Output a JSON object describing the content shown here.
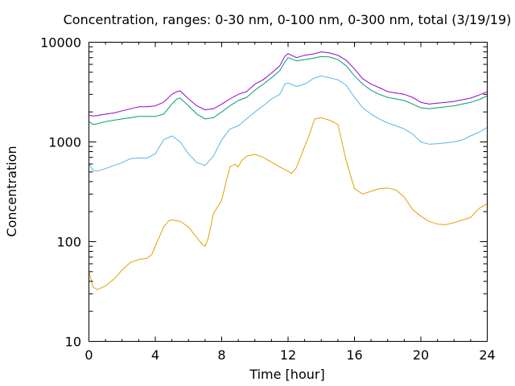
{
  "chart_data": {
    "type": "line",
    "title": "Concentration, ranges: 0-30 nm, 0-100 nm, 0-300 nm, total (3/19/19)",
    "xlabel": "Time [hour]",
    "ylabel": "Concentration",
    "xlim": [
      0,
      24
    ],
    "ylim": [
      10,
      10000
    ],
    "yscale": "log",
    "grid": false,
    "legend": "none",
    "x_ticks": [
      "0",
      "4",
      "8",
      "12",
      "16",
      "20",
      "24"
    ],
    "y_ticks": [
      "10",
      "100",
      "1000",
      "10000"
    ],
    "series": [
      {
        "color": "#e69f00",
        "x": [
          0,
          0.25,
          0.5,
          1,
          1.5,
          2,
          2.5,
          3,
          3.5,
          3.8,
          4,
          4.5,
          4.8,
          5,
          5.5,
          6,
          6.5,
          6.8,
          7,
          7.2,
          7.5,
          8,
          8.3,
          8.5,
          8.8,
          9,
          9.2,
          9.5,
          10,
          10.5,
          11,
          11.5,
          12,
          12.2,
          12.5,
          13,
          13.3,
          13.6,
          14,
          14.5,
          15,
          15.5,
          16,
          16.5,
          17,
          17.5,
          18,
          18.5,
          19,
          19.5,
          20,
          20.5,
          21,
          21.5,
          22,
          22.5,
          23,
          23.5,
          24
        ],
        "values": [
          50,
          35,
          33,
          36,
          42,
          52,
          62,
          66,
          68,
          75,
          90,
          140,
          162,
          165,
          160,
          140,
          110,
          95,
          90,
          110,
          190,
          260,
          420,
          560,
          600,
          560,
          650,
          720,
          750,
          700,
          630,
          560,
          510,
          480,
          550,
          900,
          1200,
          1700,
          1750,
          1650,
          1500,
          650,
          340,
          300,
          320,
          340,
          345,
          330,
          280,
          210,
          180,
          160,
          150,
          148,
          155,
          165,
          175,
          215,
          240
        ]
      },
      {
        "color": "#56b4e9",
        "x": [
          0,
          0.25,
          0.5,
          1,
          1.5,
          2,
          2.5,
          3,
          3.5,
          4,
          4.5,
          5,
          5.5,
          6,
          6.5,
          7,
          7.5,
          8,
          8.5,
          9,
          9.5,
          10,
          10.5,
          11,
          11.5,
          11.8,
          12,
          12.5,
          13,
          13.5,
          14,
          14.5,
          15,
          15.5,
          16,
          16.5,
          17,
          17.5,
          18,
          18.5,
          19,
          19.5,
          20,
          20.5,
          21,
          21.5,
          22,
          22.5,
          23,
          23.5,
          24
        ],
        "values": [
          600,
          520,
          510,
          540,
          580,
          620,
          680,
          690,
          690,
          760,
          1050,
          1150,
          1000,
          760,
          620,
          580,
          720,
          1050,
          1350,
          1450,
          1700,
          2000,
          2300,
          2700,
          3000,
          3800,
          3900,
          3600,
          3800,
          4300,
          4600,
          4400,
          4200,
          3700,
          2800,
          2200,
          1900,
          1700,
          1550,
          1450,
          1350,
          1200,
          1000,
          950,
          960,
          980,
          1000,
          1050,
          1150,
          1250,
          1400
        ]
      },
      {
        "color": "#009e73",
        "x": [
          0,
          0.25,
          0.5,
          1,
          1.5,
          2,
          2.5,
          3,
          3.5,
          4,
          4.5,
          5,
          5.3,
          5.5,
          6,
          6.5,
          7,
          7.5,
          8,
          8.5,
          9,
          9.5,
          10,
          10.5,
          11,
          11.5,
          11.8,
          12,
          12.5,
          13,
          13.5,
          14,
          14.5,
          15,
          15.5,
          16,
          16.5,
          17,
          17.5,
          18,
          18.5,
          19,
          19.5,
          20,
          20.5,
          21,
          21.5,
          22,
          22.5,
          23,
          23.5,
          24
        ],
        "values": [
          1600,
          1500,
          1520,
          1600,
          1650,
          1700,
          1750,
          1800,
          1800,
          1800,
          1900,
          2400,
          2700,
          2750,
          2300,
          1900,
          1700,
          1750,
          2000,
          2300,
          2600,
          2800,
          3300,
          3800,
          4400,
          5200,
          6300,
          7000,
          6500,
          6700,
          6900,
          7200,
          7100,
          6700,
          5800,
          4600,
          3800,
          3300,
          3000,
          2800,
          2700,
          2600,
          2400,
          2200,
          2150,
          2200,
          2250,
          2300,
          2400,
          2500,
          2650,
          2900
        ]
      },
      {
        "color": "#9400d3",
        "x": [
          0,
          0.25,
          0.5,
          1,
          1.5,
          2,
          2.5,
          3,
          3.5,
          4,
          4.5,
          5,
          5.3,
          5.5,
          6,
          6.5,
          7,
          7.5,
          8,
          8.5,
          9,
          9.5,
          10,
          10.5,
          11,
          11.5,
          11.8,
          12,
          12.5,
          13,
          13.5,
          14,
          14.5,
          15,
          15.5,
          16,
          16.5,
          17,
          17.5,
          18,
          18.5,
          19,
          19.5,
          20,
          20.5,
          21,
          21.5,
          22,
          22.5,
          23,
          23.5,
          24
        ],
        "values": [
          1850,
          1820,
          1840,
          1900,
          1950,
          2050,
          2150,
          2250,
          2250,
          2300,
          2500,
          3000,
          3200,
          3250,
          2700,
          2300,
          2100,
          2150,
          2400,
          2700,
          3000,
          3200,
          3800,
          4200,
          4900,
          5800,
          7200,
          7700,
          7000,
          7400,
          7600,
          8000,
          7800,
          7400,
          6600,
          5400,
          4300,
          3800,
          3500,
          3200,
          3100,
          3000,
          2800,
          2500,
          2400,
          2450,
          2500,
          2550,
          2650,
          2750,
          2950,
          3200
        ]
      }
    ]
  }
}
